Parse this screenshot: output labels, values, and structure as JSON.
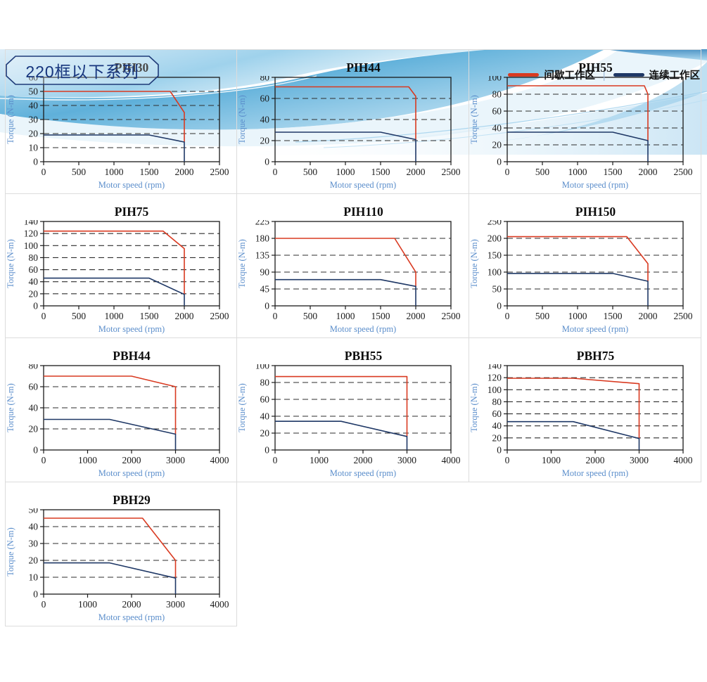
{
  "page": {
    "header": {
      "series_title": "220框以下系列",
      "legend": [
        {
          "label": "间歇工作区",
          "color": "#d93a21"
        },
        {
          "label": "连续工作区",
          "color": "#1f3866"
        }
      ],
      "legend_separator": "|"
    },
    "colors": {
      "intermittent_line": "#d93a21",
      "continuous_line": "#1f3866",
      "axis_label_blue": "#5b8ecb",
      "badge_text": "#16357d",
      "grid_border": "#dcdcdc"
    }
  },
  "chart_data": [
    {
      "type": "line",
      "title": "PIH30",
      "xlabel": "Motor speed (rpm)",
      "ylabel": "Torque (N-m)",
      "xlim": [
        0,
        2500
      ],
      "xticks": [
        0,
        500,
        1000,
        1500,
        2000,
        2500
      ],
      "ylim": [
        0,
        60
      ],
      "yticks": [
        0,
        10,
        20,
        30,
        40,
        50,
        60
      ],
      "series": [
        {
          "name": "间歇工作区",
          "color": "#d93a21",
          "points": [
            [
              0,
              50
            ],
            [
              1800,
              50
            ],
            [
              2000,
              35
            ],
            [
              2000,
              14
            ]
          ]
        },
        {
          "name": "连续工作区",
          "color": "#1f3866",
          "points": [
            [
              0,
              19
            ],
            [
              1500,
              19
            ],
            [
              2000,
              14
            ],
            [
              2000,
              0
            ]
          ]
        }
      ]
    },
    {
      "type": "line",
      "title": "PIH44",
      "xlabel": "Motor speed (rpm)",
      "ylabel": "Torque (N-m)",
      "xlim": [
        0,
        2500
      ],
      "xticks": [
        0,
        500,
        1000,
        1500,
        2000,
        2500
      ],
      "ylim": [
        0,
        80
      ],
      "yticks": [
        0,
        20,
        40,
        60,
        80
      ],
      "series": [
        {
          "name": "间歇工作区",
          "color": "#d93a21",
          "points": [
            [
              0,
              71
            ],
            [
              1900,
              71
            ],
            [
              2000,
              62
            ],
            [
              2000,
              21
            ]
          ]
        },
        {
          "name": "连续工作区",
          "color": "#1f3866",
          "points": [
            [
              0,
              28
            ],
            [
              1500,
              28
            ],
            [
              2000,
              21
            ],
            [
              2000,
              0
            ]
          ]
        }
      ]
    },
    {
      "type": "line",
      "title": "PIH55",
      "xlabel": "Motor speed (rpm)",
      "ylabel": "Torque (N-m)",
      "xlim": [
        0,
        2500
      ],
      "xticks": [
        0,
        500,
        1000,
        1500,
        2000,
        2500
      ],
      "ylim": [
        0,
        100
      ],
      "yticks": [
        0,
        20,
        40,
        60,
        80,
        100
      ],
      "series": [
        {
          "name": "间歇工作区",
          "color": "#d93a21",
          "points": [
            [
              0,
              90
            ],
            [
              1950,
              90
            ],
            [
              2000,
              80
            ],
            [
              2000,
              25
            ]
          ]
        },
        {
          "name": "连续工作区",
          "color": "#1f3866",
          "points": [
            [
              0,
              35
            ],
            [
              1500,
              35
            ],
            [
              2000,
              25
            ],
            [
              2000,
              0
            ]
          ]
        }
      ]
    },
    {
      "type": "line",
      "title": "PIH75",
      "xlabel": "Motor speed (rpm)",
      "ylabel": "Torque (N-m)",
      "xlim": [
        0,
        2500
      ],
      "xticks": [
        0,
        500,
        1000,
        1500,
        2000,
        2500
      ],
      "ylim": [
        0,
        140
      ],
      "yticks": [
        0,
        20,
        40,
        60,
        80,
        100,
        120,
        140
      ],
      "series": [
        {
          "name": "间歇工作区",
          "color": "#d93a21",
          "points": [
            [
              0,
              124
            ],
            [
              1700,
              124
            ],
            [
              2000,
              95
            ],
            [
              2000,
              19
            ]
          ]
        },
        {
          "name": "连续工作区",
          "color": "#1f3866",
          "points": [
            [
              0,
              46
            ],
            [
              1500,
              46
            ],
            [
              2000,
              19
            ],
            [
              2000,
              0
            ]
          ]
        }
      ]
    },
    {
      "type": "line",
      "title": "PIH110",
      "xlabel": "Motor speed (rpm)",
      "ylabel": "Torque (N-m)",
      "xlim": [
        0,
        2500
      ],
      "xticks": [
        0,
        500,
        1000,
        1500,
        2000,
        2500
      ],
      "ylim": [
        0,
        225
      ],
      "yticks": [
        0,
        45,
        90,
        135,
        180,
        225
      ],
      "series": [
        {
          "name": "间歇工作区",
          "color": "#d93a21",
          "points": [
            [
              0,
              180
            ],
            [
              1700,
              180
            ],
            [
              2000,
              90
            ],
            [
              2000,
              52
            ]
          ]
        },
        {
          "name": "连续工作区",
          "color": "#1f3866",
          "points": [
            [
              0,
              70
            ],
            [
              1500,
              70
            ],
            [
              2000,
              52
            ],
            [
              2000,
              0
            ]
          ]
        }
      ]
    },
    {
      "type": "line",
      "title": "PIH150",
      "xlabel": "Motor speed (rpm)",
      "ylabel": "Torque (N-m)",
      "xlim": [
        0,
        2500
      ],
      "xticks": [
        0,
        500,
        1000,
        1500,
        2000,
        2500
      ],
      "ylim": [
        0,
        250
      ],
      "yticks": [
        0,
        50,
        100,
        150,
        200,
        250
      ],
      "series": [
        {
          "name": "间歇工作区",
          "color": "#d93a21",
          "points": [
            [
              0,
              205
            ],
            [
              1700,
              205
            ],
            [
              2000,
              125
            ],
            [
              2000,
              73
            ]
          ]
        },
        {
          "name": "连续工作区",
          "color": "#1f3866",
          "points": [
            [
              0,
              96
            ],
            [
              1500,
              96
            ],
            [
              2000,
              73
            ],
            [
              2000,
              0
            ]
          ]
        }
      ]
    },
    {
      "type": "line",
      "title": "PBH44",
      "xlabel": "Motor speed (rpm)",
      "ylabel": "Torque (N-m)",
      "xlim": [
        0,
        4000
      ],
      "xticks": [
        0,
        1000,
        2000,
        3000,
        4000
      ],
      "ylim": [
        0,
        80
      ],
      "yticks": [
        0,
        20,
        40,
        60,
        80
      ],
      "series": [
        {
          "name": "间歇工作区",
          "color": "#d93a21",
          "points": [
            [
              0,
              70
            ],
            [
              2000,
              70
            ],
            [
              3000,
              60
            ],
            [
              3000,
              15
            ]
          ]
        },
        {
          "name": "连续工作区",
          "color": "#1f3866",
          "points": [
            [
              0,
              29
            ],
            [
              1500,
              29
            ],
            [
              3000,
              15
            ],
            [
              3000,
              0
            ]
          ]
        }
      ]
    },
    {
      "type": "line",
      "title": "PBH55",
      "xlabel": "Motor speed (rpm)",
      "ylabel": "Torque (N-m)",
      "xlim": [
        0,
        4000
      ],
      "xticks": [
        0,
        1000,
        2000,
        3000,
        4000
      ],
      "ylim": [
        0,
        100
      ],
      "yticks": [
        0,
        20,
        40,
        60,
        80,
        100
      ],
      "series": [
        {
          "name": "间歇工作区",
          "color": "#d93a21",
          "points": [
            [
              0,
              87
            ],
            [
              3000,
              87
            ],
            [
              3000,
              16
            ]
          ]
        },
        {
          "name": "连续工作区",
          "color": "#1f3866",
          "points": [
            [
              0,
              34
            ],
            [
              1500,
              34
            ],
            [
              3000,
              16
            ],
            [
              3000,
              0
            ]
          ]
        }
      ]
    },
    {
      "type": "line",
      "title": "PBH75",
      "xlabel": "Motor speed (rpm)",
      "ylabel": "Torque (N-m)",
      "xlim": [
        0,
        4000
      ],
      "xticks": [
        0,
        1000,
        2000,
        3000,
        4000
      ],
      "ylim": [
        0,
        140
      ],
      "yticks": [
        0,
        20,
        40,
        60,
        80,
        100,
        120,
        140
      ],
      "series": [
        {
          "name": "间歇工作区",
          "color": "#d93a21",
          "points": [
            [
              0,
              119
            ],
            [
              1500,
              119
            ],
            [
              3000,
              110
            ],
            [
              3000,
              19
            ]
          ]
        },
        {
          "name": "连续工作区",
          "color": "#1f3866",
          "points": [
            [
              0,
              47
            ],
            [
              1500,
              47
            ],
            [
              3000,
              19
            ],
            [
              3000,
              0
            ]
          ]
        }
      ]
    },
    {
      "type": "line",
      "title": "PBH29",
      "xlabel": "Motor speed (rpm)",
      "ylabel": "Torque (N-m)",
      "xlim": [
        0,
        4000
      ],
      "xticks": [
        0,
        1000,
        2000,
        3000,
        4000
      ],
      "ylim": [
        0,
        50
      ],
      "yticks": [
        0,
        10,
        20,
        30,
        40,
        50
      ],
      "series": [
        {
          "name": "间歇工作区",
          "color": "#d93a21",
          "points": [
            [
              0,
              45
            ],
            [
              2250,
              45
            ],
            [
              3000,
              20
            ],
            [
              3000,
              9.5
            ]
          ]
        },
        {
          "name": "连续工作区",
          "color": "#1f3866",
          "points": [
            [
              0,
              18.5
            ],
            [
              1500,
              18.5
            ],
            [
              3000,
              9.5
            ],
            [
              3000,
              0
            ]
          ]
        }
      ]
    }
  ]
}
